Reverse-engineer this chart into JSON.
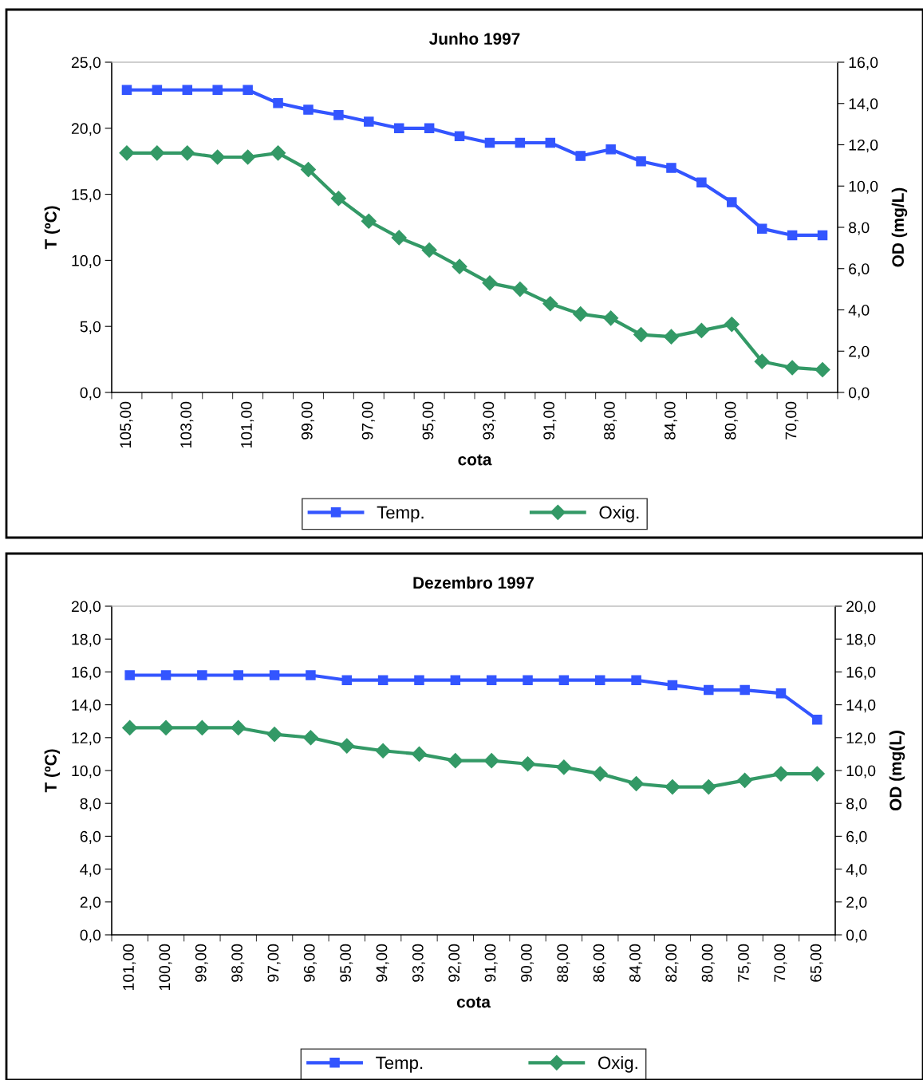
{
  "chart_data": [
    {
      "type": "line",
      "title": "Junho 1997",
      "xlabel": "cota",
      "ylabel": "T (ºC)",
      "y2label": "OD (mg/L)",
      "categories": [
        "105,00",
        null,
        "103,00",
        null,
        "101,00",
        null,
        "99,00",
        null,
        "97,00",
        null,
        "95,00",
        null,
        "93,00",
        null,
        "91,00",
        null,
        "88,00",
        null,
        "84,00",
        null,
        "80,00",
        null,
        "70,00",
        null
      ],
      "series": [
        {
          "name": "Temp.",
          "color": "#3355ff",
          "marker": "square",
          "values": [
            22.9,
            22.9,
            22.9,
            22.9,
            22.9,
            21.9,
            21.4,
            21.0,
            20.5,
            20.0,
            20.0,
            19.4,
            18.9,
            18.9,
            18.9,
            17.9,
            18.4,
            17.5,
            17.0,
            15.9,
            14.4,
            12.4,
            11.9,
            11.9
          ]
        },
        {
          "name": "Oxig.",
          "color": "#339966",
          "marker": "diamond",
          "axis": "y2",
          "values": [
            11.6,
            11.6,
            11.6,
            11.4,
            11.4,
            11.6,
            10.8,
            9.4,
            8.3,
            7.5,
            6.9,
            6.1,
            5.3,
            5.0,
            4.3,
            3.8,
            3.6,
            2.8,
            2.7,
            3.0,
            3.3,
            1.5,
            1.2,
            1.1
          ]
        }
      ],
      "ylim": [
        0,
        25
      ],
      "yticks": [
        {
          "value": 0,
          "label": "0,0"
        },
        {
          "value": 5,
          "label": "5,0"
        },
        {
          "value": 10,
          "label": "10,0"
        },
        {
          "value": 15,
          "label": "15,0"
        },
        {
          "value": 20,
          "label": "20,0"
        },
        {
          "value": 25,
          "label": "25,0"
        }
      ],
      "y2lim": [
        0,
        16
      ],
      "y2ticks": [
        {
          "value": 0,
          "label": "0,0"
        },
        {
          "value": 2,
          "label": "2,0"
        },
        {
          "value": 4,
          "label": "4,0"
        },
        {
          "value": 6,
          "label": "6,0"
        },
        {
          "value": 8,
          "label": "8,0"
        },
        {
          "value": 10,
          "label": "10,0"
        },
        {
          "value": 12,
          "label": "12,0"
        },
        {
          "value": 14,
          "label": "14,0"
        },
        {
          "value": 16,
          "label": "16,0"
        }
      ],
      "legend": "bottom",
      "grid": false
    },
    {
      "type": "line",
      "title": "Dezembro 1997",
      "xlabel": "cota",
      "ylabel": "T (ºC)",
      "y2label": "OD (mg(L)",
      "categories": [
        "101,00",
        "100,00",
        "99,00",
        "98,00",
        "97,00",
        "96,00",
        "95,00",
        "94,00",
        "93,00",
        "92,00",
        "91,00",
        "90,00",
        "88,00",
        "86,00",
        "84,00",
        "82,00",
        "80,00",
        "75,00",
        "70,00",
        "65,00"
      ],
      "series": [
        {
          "name": "Temp.",
          "color": "#3355ff",
          "marker": "square",
          "values": [
            15.8,
            15.8,
            15.8,
            15.8,
            15.8,
            15.8,
            15.5,
            15.5,
            15.5,
            15.5,
            15.5,
            15.5,
            15.5,
            15.5,
            15.5,
            15.2,
            14.9,
            14.9,
            14.7,
            13.1
          ]
        },
        {
          "name": "Oxig.",
          "color": "#339966",
          "marker": "diamond",
          "axis": "y2",
          "values": [
            12.6,
            12.6,
            12.6,
            12.6,
            12.2,
            12.0,
            11.5,
            11.2,
            11.0,
            10.6,
            10.6,
            10.4,
            10.2,
            9.8,
            9.2,
            9.0,
            9.0,
            9.4,
            9.8,
            9.8
          ]
        }
      ],
      "ylim": [
        0,
        20
      ],
      "yticks": [
        {
          "value": 0,
          "label": "0,0"
        },
        {
          "value": 2,
          "label": "2,0"
        },
        {
          "value": 4,
          "label": "4,0"
        },
        {
          "value": 6,
          "label": "6,0"
        },
        {
          "value": 8,
          "label": "8,0"
        },
        {
          "value": 10,
          "label": "10,0"
        },
        {
          "value": 12,
          "label": "12,0"
        },
        {
          "value": 14,
          "label": "14,0"
        },
        {
          "value": 16,
          "label": "16,0"
        },
        {
          "value": 18,
          "label": "18,0"
        },
        {
          "value": 20,
          "label": "20,0"
        }
      ],
      "y2lim": [
        0,
        20
      ],
      "y2ticks": [
        {
          "value": 0,
          "label": "0,0"
        },
        {
          "value": 2,
          "label": "2,0"
        },
        {
          "value": 4,
          "label": "4,0"
        },
        {
          "value": 6,
          "label": "6,0"
        },
        {
          "value": 8,
          "label": "8,0"
        },
        {
          "value": 10,
          "label": "10,0"
        },
        {
          "value": 12,
          "label": "12,0"
        },
        {
          "value": 14,
          "label": "14,0"
        },
        {
          "value": 16,
          "label": "16,0"
        },
        {
          "value": 18,
          "label": "18,0"
        },
        {
          "value": 20,
          "label": "20,0"
        }
      ],
      "legend": "bottom",
      "grid": false
    }
  ]
}
